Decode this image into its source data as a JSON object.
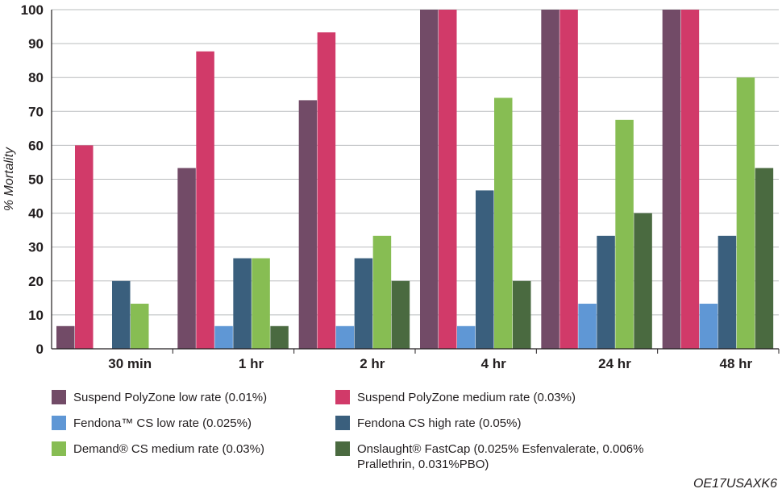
{
  "chart_data": {
    "type": "bar",
    "title": "",
    "xlabel": "",
    "ylabel": "% Mortality",
    "ylim": [
      0,
      100
    ],
    "yticks": [
      "0",
      "10",
      "20",
      "30",
      "40",
      "50",
      "60",
      "70",
      "80",
      "90",
      "100"
    ],
    "categories": [
      "30 min",
      "1 hr",
      "2 hr",
      "4 hr",
      "24 hr",
      "48 hr"
    ],
    "grid": true,
    "legend_position": "bottom",
    "series": [
      {
        "name": "Suspend PolyZone low rate (0.01%)",
        "color": "#724b67",
        "values": [
          6.7,
          53.3,
          73.3,
          100,
          100,
          100
        ]
      },
      {
        "name": "Suspend PolyZone medium rate (0.03%)",
        "color": "#d13a69",
        "values": [
          60,
          87.7,
          93.3,
          100,
          100,
          100
        ]
      },
      {
        "name": "Fendona™ CS low rate (0.025%)",
        "color": "#5f97d5",
        "values": [
          0,
          6.7,
          6.7,
          6.7,
          13.3,
          13.3
        ]
      },
      {
        "name": "Fendona CS high rate (0.05%)",
        "color": "#3a5f7d",
        "values": [
          20,
          26.7,
          26.7,
          46.7,
          33.3,
          33.3
        ]
      },
      {
        "name": "Demand® CS medium rate (0.03%)",
        "color": "#87bd53",
        "values": [
          13.3,
          26.7,
          33.3,
          74,
          67.5,
          80
        ]
      },
      {
        "name": "Onslaught® FastCap (0.025% Esfenvalerate, 0.006% Prallethrin, 0.031%PBO)",
        "color": "#4a6a40",
        "values": [
          0,
          6.7,
          20,
          20,
          40,
          53.3
        ]
      }
    ]
  },
  "chart_code": "OE17USAXK6"
}
